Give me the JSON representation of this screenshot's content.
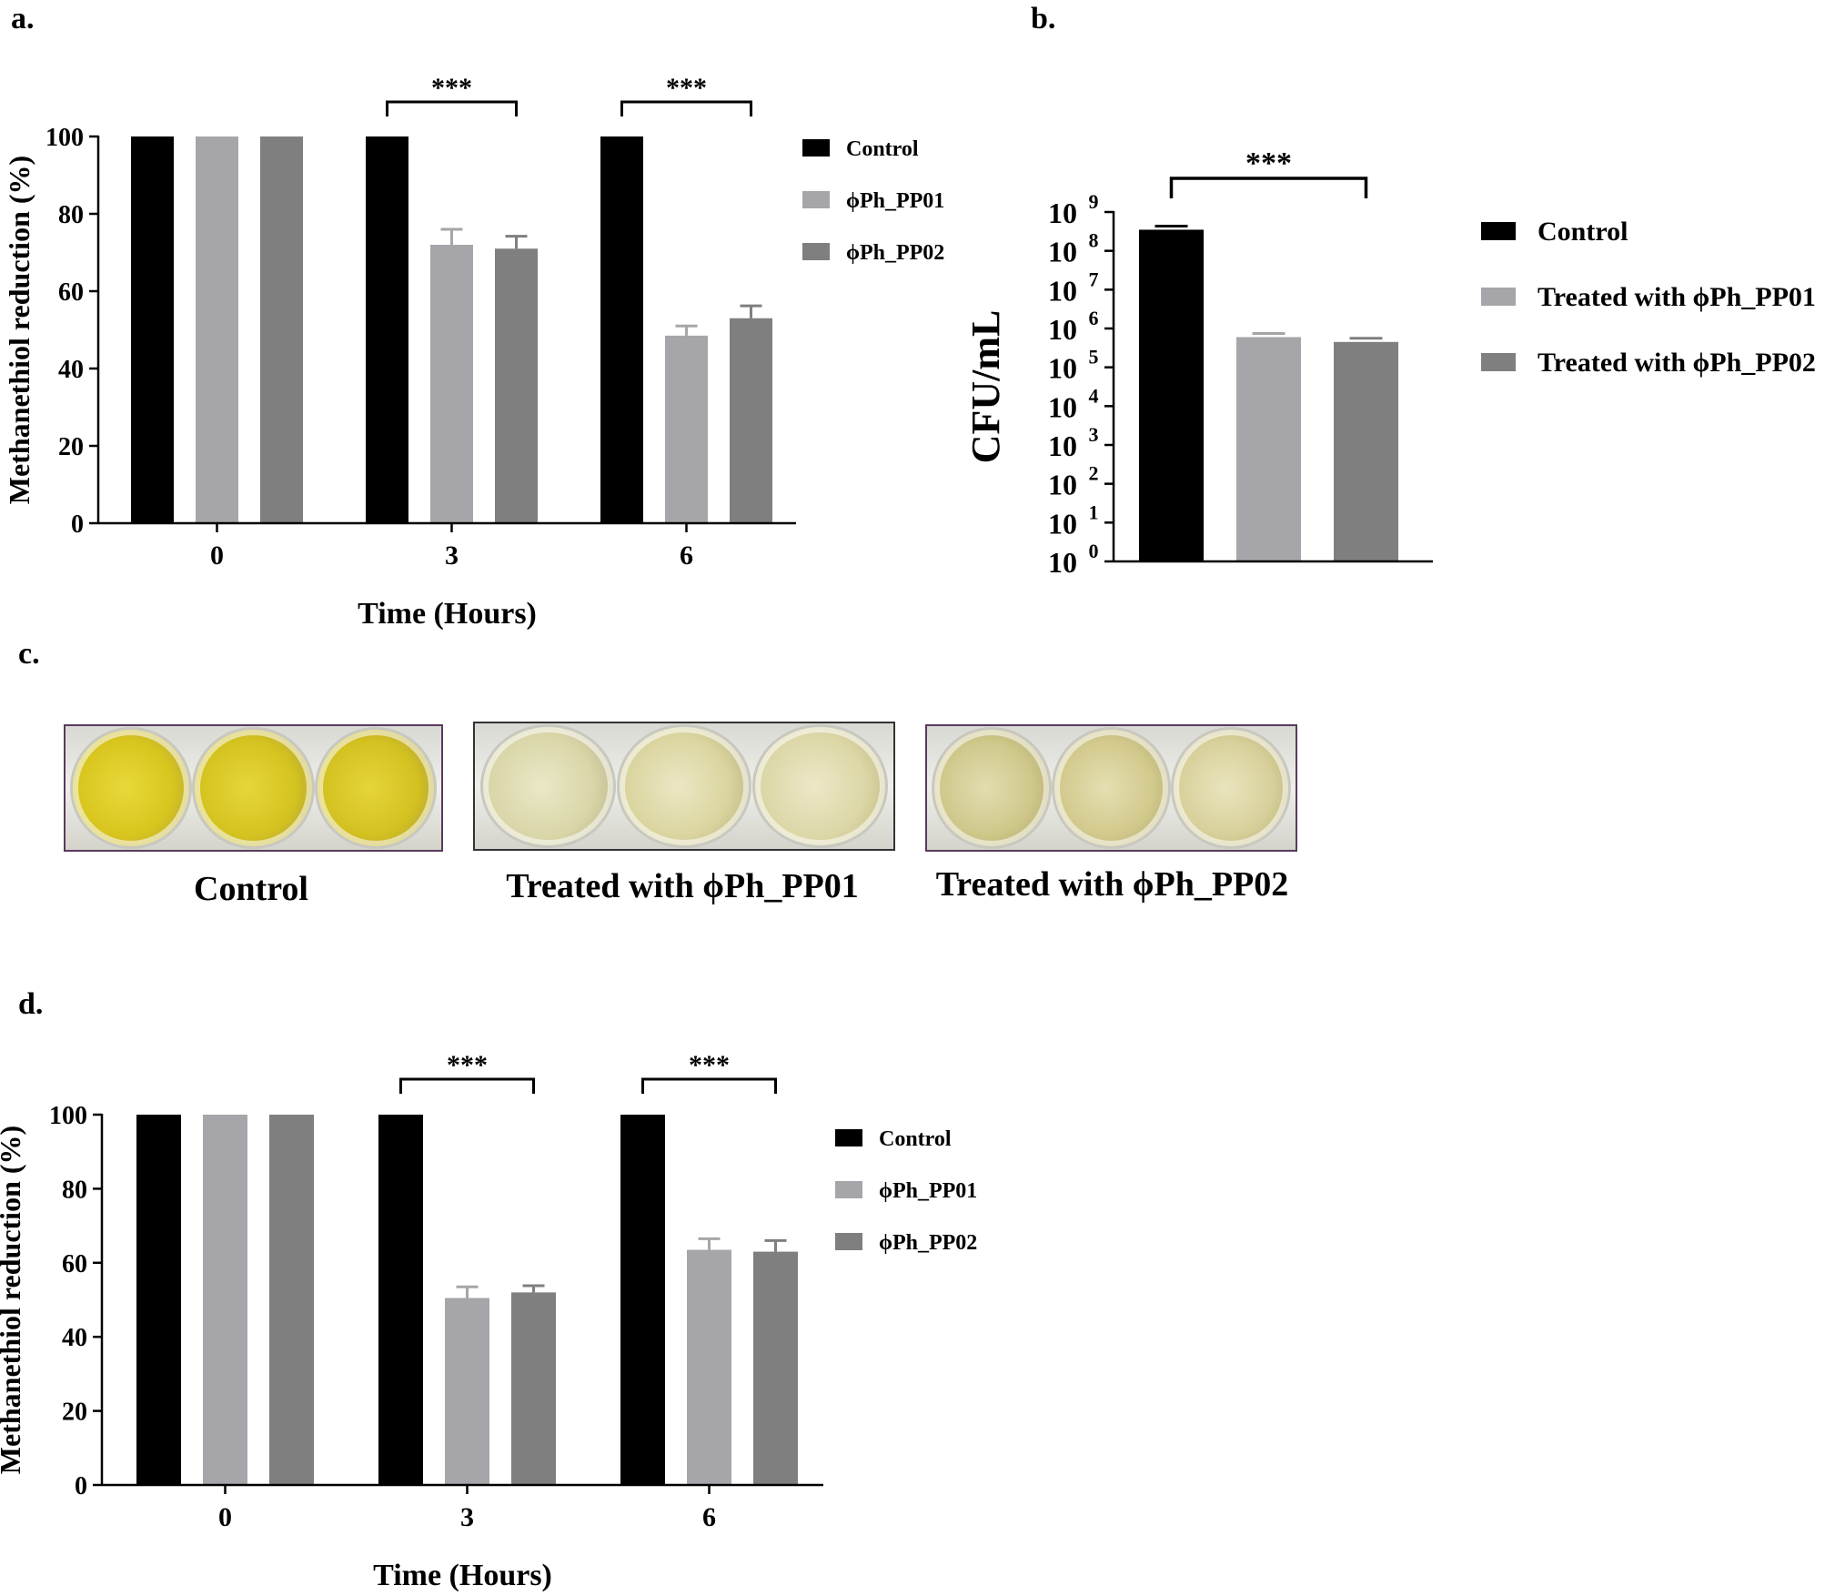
{
  "panel_labels": {
    "a": "a.",
    "b": "b.",
    "c": "c.",
    "d": "d."
  },
  "chart_data": [
    {
      "id": "a",
      "type": "bar",
      "title": "",
      "xlabel": "Time (Hours)",
      "ylabel": "Methanethiol reduction (%)",
      "ylim": [
        0,
        100
      ],
      "yticks": [
        0,
        20,
        40,
        60,
        80,
        100
      ],
      "categories": [
        "0",
        "3",
        "6"
      ],
      "series": [
        {
          "name": "Control",
          "color": "#000000",
          "values": [
            100,
            100,
            100
          ],
          "errors": [
            0,
            0,
            0
          ]
        },
        {
          "name": "ϕPh_PP01",
          "color": "#a6a6aa",
          "values": [
            100,
            72,
            48.5
          ],
          "errors": [
            0,
            4,
            2.5
          ]
        },
        {
          "name": "ϕPh_PP02",
          "color": "#7f7f7f",
          "values": [
            100,
            71,
            53
          ],
          "errors": [
            0,
            3.2,
            3.2
          ]
        }
      ],
      "significance": [
        {
          "category": "3",
          "label": "***"
        },
        {
          "category": "6",
          "label": "***"
        }
      ]
    },
    {
      "id": "b",
      "type": "bar",
      "title": "",
      "xlabel": "",
      "ylabel": "CFU/mL",
      "yscale": "log10",
      "ylim": [
        1,
        1000000000
      ],
      "ytick_exponents": [
        0,
        1,
        2,
        3,
        4,
        5,
        6,
        7,
        8,
        9
      ],
      "ytick_base": "10",
      "categories": [
        "Control",
        "Treated with ϕPh_PP01",
        "Treated with ϕPh_PP02"
      ],
      "values": [
        350000000,
        600000,
        450000
      ],
      "colors": [
        "#000000",
        "#a6a6aa",
        "#7f7f7f"
      ],
      "significance": [
        {
          "from": "Control",
          "to": "Treated with ϕPh_PP02",
          "label": "***"
        }
      ]
    },
    {
      "id": "d",
      "type": "bar",
      "title": "",
      "xlabel": "Time (Hours)",
      "ylabel": "Methanethiol reduction (%)",
      "ylim": [
        0,
        100
      ],
      "yticks": [
        0,
        20,
        40,
        60,
        80,
        100
      ],
      "categories": [
        "0",
        "3",
        "6"
      ],
      "series": [
        {
          "name": "Control",
          "color": "#000000",
          "values": [
            100,
            100,
            100
          ],
          "errors": [
            0,
            0,
            0
          ]
        },
        {
          "name": "ϕPh_PP01",
          "color": "#a6a6aa",
          "values": [
            100,
            50.5,
            63.5
          ],
          "errors": [
            0,
            3,
            3
          ]
        },
        {
          "name": "ϕPh_PP02",
          "color": "#7f7f7f",
          "values": [
            100,
            52,
            63
          ],
          "errors": [
            0,
            1.8,
            3
          ]
        }
      ],
      "significance": [
        {
          "category": "3",
          "label": "***"
        },
        {
          "category": "6",
          "label": "***"
        }
      ]
    }
  ],
  "photos": [
    {
      "caption": "Control"
    },
    {
      "caption": "Treated with ϕPh_PP01"
    },
    {
      "caption": "Treated with ϕPh_PP02"
    }
  ]
}
